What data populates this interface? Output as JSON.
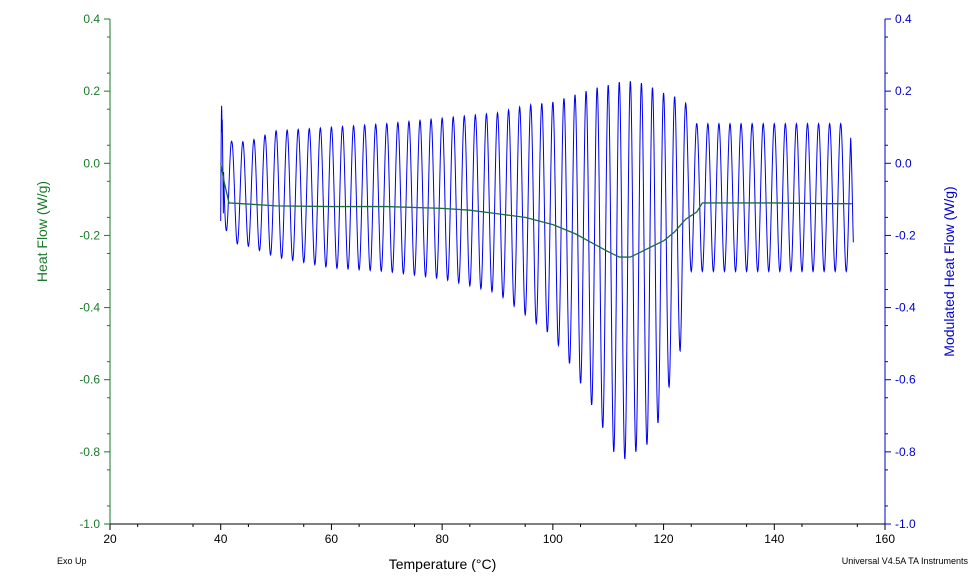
{
  "chart_data": {
    "type": "line",
    "xlabel": "Temperature (°C)",
    "ylabel_left": "Heat Flow (W/g)",
    "ylabel_right": "Modulated Heat Flow (W/g)",
    "xlim": [
      20,
      160
    ],
    "ylim_left": [
      -1.0,
      0.4
    ],
    "ylim_right": [
      -1.0,
      0.4
    ],
    "x_ticks": [
      "20",
      "40",
      "60",
      "80",
      "100",
      "120",
      "140",
      "160"
    ],
    "y_ticks_left": [
      "0.4",
      "0.2",
      "0.0",
      "-0.2",
      "-0.4",
      "-0.6",
      "-0.8",
      "-1.0"
    ],
    "y_ticks_right": [
      "0.4",
      "0.2",
      "0.0",
      "-0.2",
      "-0.4",
      "-0.6",
      "-0.8",
      "-1.0"
    ],
    "colors": {
      "left_axis": "#1a7a2a",
      "right_axis": "#0000cc",
      "heat_flow": "#1a6e3a",
      "modulated": "#0000ee"
    },
    "series": [
      {
        "name": "Heat Flow",
        "axis": "left",
        "x": [
          40.0,
          40.6,
          41.5,
          45,
          50,
          60,
          70,
          80,
          85,
          90,
          95,
          100,
          104,
          107,
          110,
          112,
          114,
          116,
          118,
          120,
          122,
          124,
          126,
          127,
          130,
          140,
          150,
          154
        ],
        "y": [
          0.0,
          -0.05,
          -0.11,
          -0.113,
          -0.118,
          -0.12,
          -0.12,
          -0.125,
          -0.13,
          -0.14,
          -0.15,
          -0.17,
          -0.195,
          -0.22,
          -0.245,
          -0.26,
          -0.26,
          -0.245,
          -0.23,
          -0.215,
          -0.19,
          -0.155,
          -0.135,
          -0.11,
          -0.11,
          -0.11,
          -0.112,
          -0.112
        ]
      },
      {
        "name": "Modulated Heat Flow",
        "axis": "right",
        "x_start": 40.0,
        "x_end": 154.3,
        "period": 2.0,
        "envelope_x": [
          40.2,
          42,
          45,
          50,
          60,
          70,
          80,
          90,
          95,
          100,
          104,
          108,
          111,
          113,
          115,
          117,
          119,
          121,
          123,
          124.5,
          126,
          128,
          140,
          153
        ],
        "envelope_max": [
          0.16,
          0.06,
          0.06,
          0.09,
          0.1,
          0.11,
          0.125,
          0.14,
          0.16,
          0.17,
          0.19,
          0.21,
          0.22,
          0.23,
          0.225,
          0.22,
          0.2,
          0.19,
          0.18,
          0.16,
          0.11,
          0.11,
          0.11,
          0.11
        ],
        "envelope_min": [
          -0.16,
          -0.22,
          -0.23,
          -0.26,
          -0.29,
          -0.3,
          -0.32,
          -0.36,
          -0.42,
          -0.48,
          -0.58,
          -0.7,
          -0.8,
          -0.82,
          -0.8,
          -0.78,
          -0.72,
          -0.62,
          -0.52,
          -0.3,
          -0.3,
          -0.3,
          -0.3,
          -0.3
        ],
        "end_value": -0.23
      }
    ]
  },
  "footer": {
    "left": "Exo Up",
    "right": "Universal V4.5A TA Instruments"
  }
}
